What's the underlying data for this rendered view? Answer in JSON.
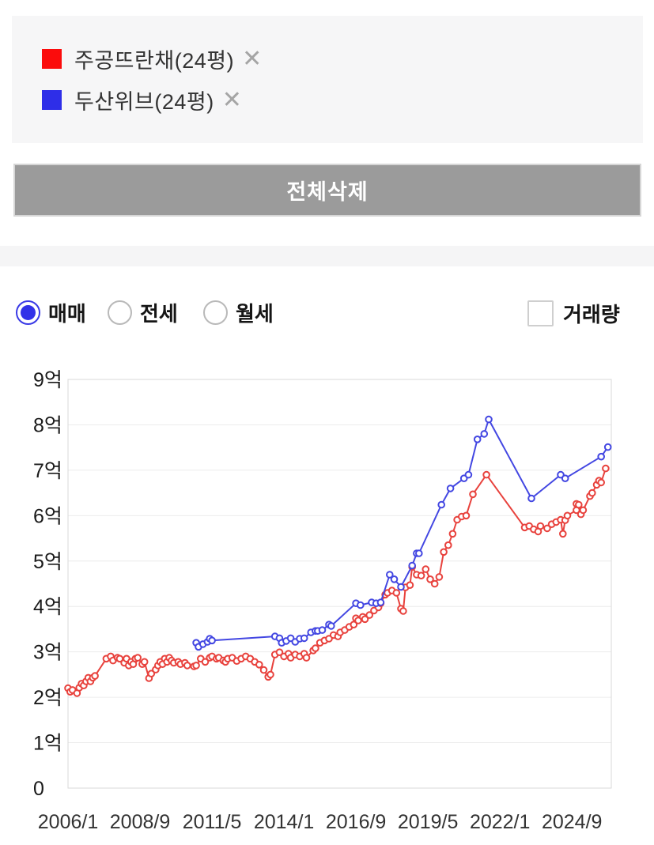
{
  "legend": {
    "items": [
      {
        "label": "주공뜨란채(24평)",
        "color": "#fb0c0c",
        "close_icon": "✕"
      },
      {
        "label": "두산위브(24평)",
        "color": "#2e2ee8",
        "close_icon": "✕"
      }
    ]
  },
  "delete_all_button": {
    "label": "전체삭제"
  },
  "controls": {
    "radios": [
      {
        "label": "매매",
        "selected": true
      },
      {
        "label": "전세",
        "selected": false
      },
      {
        "label": "월세",
        "selected": false
      }
    ],
    "volume_checkbox": {
      "label": "거래량",
      "checked": false
    }
  },
  "chart_data": {
    "type": "line",
    "title": "",
    "xlabel": "",
    "ylabel": "",
    "x_unit_note": "x = months since 2006/1, y = price in 억원",
    "xlim": [
      0,
      241.5
    ],
    "ylim": [
      0,
      9
    ],
    "grid": true,
    "legend_position": "none",
    "x_ticks": [
      {
        "t": 0,
        "label": "2006/1"
      },
      {
        "t": 32,
        "label": "2008/9"
      },
      {
        "t": 64,
        "label": "2011/5"
      },
      {
        "t": 96,
        "label": "2014/1"
      },
      {
        "t": 128,
        "label": "2016/9"
      },
      {
        "t": 160,
        "label": "2019/5"
      },
      {
        "t": 192,
        "label": "2022/1"
      },
      {
        "t": 224,
        "label": "2024/9"
      }
    ],
    "y_ticks": [
      {
        "v": 9,
        "label": "9억"
      },
      {
        "v": 8,
        "label": "8억"
      },
      {
        "v": 7,
        "label": "7억"
      },
      {
        "v": 6,
        "label": "6억"
      },
      {
        "v": 5,
        "label": "5억"
      },
      {
        "v": 4,
        "label": "4억"
      },
      {
        "v": 3,
        "label": "3억"
      },
      {
        "v": 2,
        "label": "2억"
      },
      {
        "v": 1,
        "label": "1억"
      },
      {
        "v": 0,
        "label": "0"
      }
    ],
    "series": [
      {
        "name": "주공뜨란채(24평)",
        "color": "#e8423d",
        "marker": "circle",
        "points": [
          [
            0,
            2.2
          ],
          [
            1,
            2.12
          ],
          [
            2,
            2.16
          ],
          [
            4,
            2.09
          ],
          [
            5,
            2.21
          ],
          [
            6,
            2.3
          ],
          [
            7,
            2.26
          ],
          [
            8,
            2.35
          ],
          [
            9,
            2.43
          ],
          [
            10,
            2.35
          ],
          [
            11,
            2.43
          ],
          [
            12,
            2.47
          ],
          [
            17,
            2.85
          ],
          [
            19,
            2.9
          ],
          [
            20,
            2.81
          ],
          [
            22,
            2.87
          ],
          [
            23,
            2.85
          ],
          [
            25,
            2.76
          ],
          [
            26,
            2.85
          ],
          [
            27,
            2.7
          ],
          [
            28,
            2.78
          ],
          [
            29,
            2.73
          ],
          [
            30,
            2.85
          ],
          [
            31,
            2.87
          ],
          [
            33,
            2.73
          ],
          [
            34,
            2.78
          ],
          [
            36,
            2.42
          ],
          [
            37,
            2.52
          ],
          [
            39,
            2.61
          ],
          [
            40,
            2.7
          ],
          [
            41,
            2.78
          ],
          [
            42,
            2.73
          ],
          [
            43,
            2.85
          ],
          [
            44,
            2.78
          ],
          [
            45,
            2.87
          ],
          [
            46,
            2.81
          ],
          [
            47,
            2.76
          ],
          [
            49,
            2.78
          ],
          [
            50,
            2.73
          ],
          [
            52,
            2.76
          ],
          [
            53,
            2.7
          ],
          [
            56,
            2.68
          ],
          [
            57,
            2.7
          ],
          [
            59,
            2.85
          ],
          [
            61,
            2.78
          ],
          [
            63,
            2.87
          ],
          [
            64,
            2.9
          ],
          [
            66,
            2.85
          ],
          [
            67,
            2.87
          ],
          [
            69,
            2.81
          ],
          [
            70,
            2.78
          ],
          [
            71,
            2.85
          ],
          [
            73,
            2.87
          ],
          [
            75,
            2.8
          ],
          [
            77,
            2.85
          ],
          [
            79,
            2.9
          ],
          [
            81,
            2.85
          ],
          [
            83,
            2.78
          ],
          [
            85,
            2.72
          ],
          [
            87,
            2.6
          ],
          [
            89,
            2.45
          ],
          [
            90,
            2.5
          ],
          [
            92,
            2.94
          ],
          [
            94,
            2.99
          ],
          [
            96,
            2.9
          ],
          [
            98,
            2.96
          ],
          [
            99,
            2.87
          ],
          [
            101,
            2.94
          ],
          [
            103,
            2.9
          ],
          [
            105,
            2.96
          ],
          [
            106,
            2.87
          ],
          [
            109,
            3.03
          ],
          [
            110,
            3.08
          ],
          [
            112,
            3.2
          ],
          [
            114,
            3.25
          ],
          [
            116,
            3.29
          ],
          [
            118,
            3.37
          ],
          [
            120,
            3.34
          ],
          [
            121,
            3.43
          ],
          [
            123,
            3.48
          ],
          [
            125,
            3.55
          ],
          [
            127,
            3.6
          ],
          [
            128,
            3.74
          ],
          [
            129,
            3.69
          ],
          [
            131,
            3.77
          ],
          [
            132,
            3.72
          ],
          [
            134,
            3.81
          ],
          [
            136,
            3.91
          ],
          [
            138,
            3.98
          ],
          [
            139,
            4.07
          ],
          [
            141,
            4.26
          ],
          [
            142,
            4.3
          ],
          [
            144,
            4.35
          ],
          [
            146,
            4.3
          ],
          [
            148,
            3.95
          ],
          [
            149,
            3.9
          ],
          [
            150,
            4.42
          ],
          [
            152,
            4.47
          ],
          [
            153,
            4.87
          ],
          [
            155,
            4.7
          ],
          [
            157,
            4.68
          ],
          [
            159,
            4.82
          ],
          [
            161,
            4.6
          ],
          [
            163,
            4.5
          ],
          [
            165,
            4.65
          ],
          [
            167,
            5.2
          ],
          [
            169,
            5.35
          ],
          [
            171,
            5.6
          ],
          [
            173,
            5.91
          ],
          [
            175,
            5.98
          ],
          [
            177,
            6.0
          ],
          [
            180,
            6.47
          ],
          [
            186,
            6.9
          ],
          [
            203,
            5.74
          ],
          [
            205,
            5.77
          ],
          [
            207,
            5.7
          ],
          [
            209,
            5.65
          ],
          [
            210,
            5.77
          ],
          [
            213,
            5.72
          ],
          [
            215,
            5.81
          ],
          [
            217,
            5.86
          ],
          [
            219,
            5.91
          ],
          [
            220,
            5.6
          ],
          [
            221,
            5.9
          ],
          [
            222,
            6.0
          ],
          [
            226,
            6.12
          ],
          [
            226,
            6.26
          ],
          [
            227,
            6.24
          ],
          [
            228,
            6.03
          ],
          [
            229,
            6.12
          ],
          [
            232,
            6.43
          ],
          [
            233,
            6.5
          ],
          [
            235,
            6.68
          ],
          [
            236,
            6.77
          ],
          [
            237,
            6.73
          ],
          [
            239,
            7.04
          ]
        ]
      },
      {
        "name": "두산위브(24평)",
        "color": "#4347e2",
        "marker": "circle",
        "points": [
          [
            57,
            3.2
          ],
          [
            58,
            3.11
          ],
          [
            60,
            3.17
          ],
          [
            62,
            3.22
          ],
          [
            63,
            3.29
          ],
          [
            64,
            3.25
          ],
          [
            92,
            3.34
          ],
          [
            94,
            3.3
          ],
          [
            95,
            3.2
          ],
          [
            97,
            3.24
          ],
          [
            99,
            3.3
          ],
          [
            101,
            3.22
          ],
          [
            103,
            3.29
          ],
          [
            105,
            3.3
          ],
          [
            108,
            3.43
          ],
          [
            110,
            3.46
          ],
          [
            111,
            3.46
          ],
          [
            113,
            3.48
          ],
          [
            116,
            3.6
          ],
          [
            117,
            3.57
          ],
          [
            128,
            4.07
          ],
          [
            130,
            4.03
          ],
          [
            135,
            4.09
          ],
          [
            137,
            4.07
          ],
          [
            139,
            4.09
          ],
          [
            143,
            4.7
          ],
          [
            145,
            4.6
          ],
          [
            148,
            4.43
          ],
          [
            153,
            4.9
          ],
          [
            155,
            5.17
          ],
          [
            156,
            5.17
          ],
          [
            166,
            6.24
          ],
          [
            170,
            6.6
          ],
          [
            176,
            6.82
          ],
          [
            178,
            6.9
          ],
          [
            182,
            7.68
          ],
          [
            185,
            7.8
          ],
          [
            187,
            8.12
          ],
          [
            206,
            6.38
          ],
          [
            219,
            6.9
          ],
          [
            221,
            6.82
          ],
          [
            237,
            7.3
          ],
          [
            240,
            7.51
          ]
        ]
      }
    ]
  },
  "colors": {
    "panel_bg": "#f6f6f7",
    "button_bg": "#9b9b9b",
    "grid_line": "#ececec",
    "plot_border": "#d9d9d9",
    "radio_selected": "#3232e8"
  }
}
